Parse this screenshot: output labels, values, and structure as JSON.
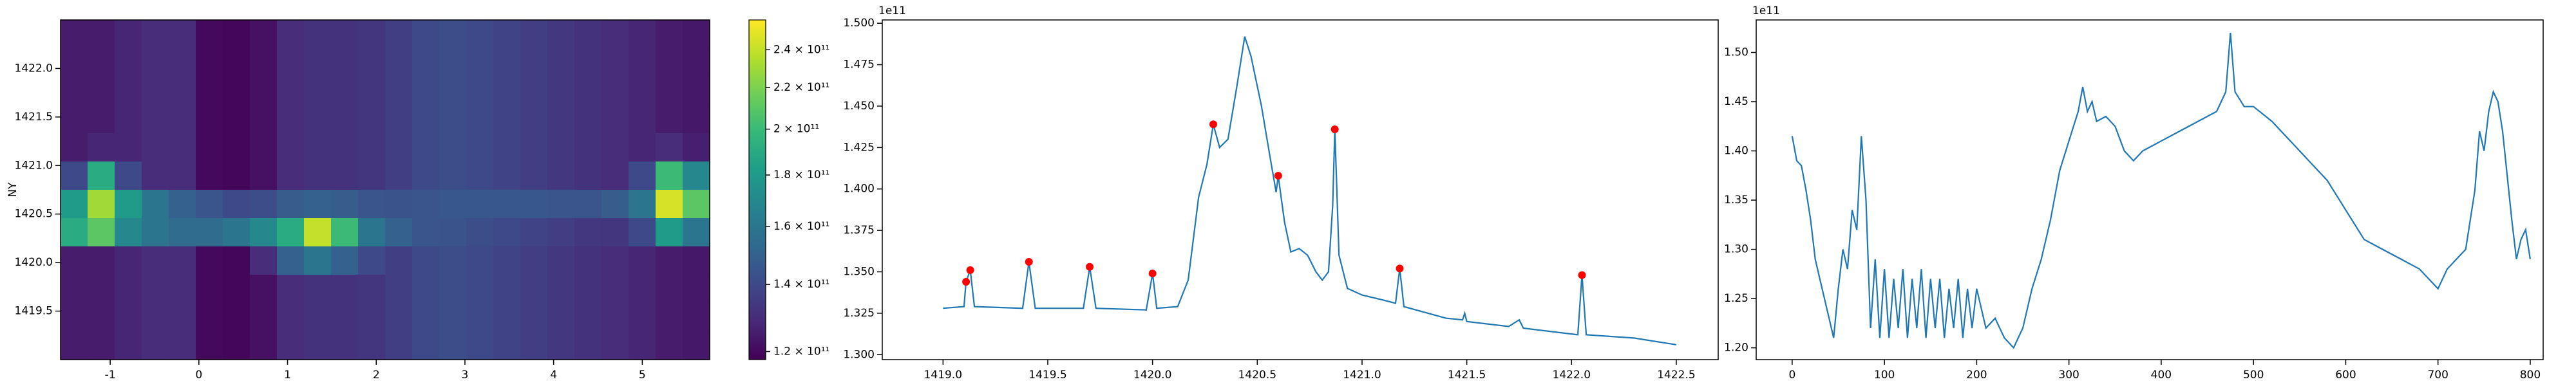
{
  "chart_data": [
    {
      "type": "heatmap",
      "ylabel": "NY",
      "colormap": "viridis",
      "xlim": [
        -1.56,
        5.76
      ],
      "xticks": [
        -1,
        0,
        1,
        2,
        3,
        4,
        5
      ],
      "ylim": [
        1419.0,
        1422.5
      ],
      "yticks": [
        {
          "value": 1419.5,
          "label": "1419.5"
        },
        {
          "value": 1420.0,
          "label": "1420.0"
        },
        {
          "value": 1420.5,
          "label": "1420.5"
        },
        {
          "value": 1421.0,
          "label": "1421.0"
        },
        {
          "value": 1421.5,
          "label": "1421.5"
        },
        {
          "value": 1422.0,
          "label": "1422.0"
        }
      ],
      "zscale": "log",
      "zlim": [
        117800000000.0,
        257000000000.0
      ],
      "zticks": [
        {
          "value": 120000000000.0,
          "label": "1.2 × 10¹¹"
        },
        {
          "value": 140000000000.0,
          "label": "1.4 × 10¹¹"
        },
        {
          "value": 160000000000.0,
          "label": "1.6 × 10¹¹"
        },
        {
          "value": 180000000000.0,
          "label": "1.8 × 10¹¹"
        },
        {
          "value": 200000000000.0,
          "label": "2 × 10¹¹"
        },
        {
          "value": 220000000000.0,
          "label": "2.2 × 10¹¹"
        },
        {
          "value": 240000000000.0,
          "label": "2.4 × 10¹¹"
        }
      ],
      "z": [
        [
          125000000000.0,
          125000000000.0,
          128000000000.0,
          130000000000.0,
          130000000000.0,
          120000000000.0,
          119000000000.0,
          122000000000.0,
          130000000000.0,
          132000000000.0,
          132000000000.0,
          133000000000.0,
          136000000000.0,
          140000000000.0,
          142000000000.0,
          140000000000.0,
          138000000000.0,
          136000000000.0,
          134000000000.0,
          132000000000.0,
          130000000000.0,
          128000000000.0,
          125000000000.0,
          124000000000.0
        ],
        [
          125000000000.0,
          125000000000.0,
          128000000000.0,
          130000000000.0,
          130000000000.0,
          120000000000.0,
          119000000000.0,
          122000000000.0,
          130000000000.0,
          132000000000.0,
          132000000000.0,
          133000000000.0,
          136000000000.0,
          140000000000.0,
          142000000000.0,
          140000000000.0,
          138000000000.0,
          136000000000.0,
          134000000000.0,
          132000000000.0,
          130000000000.0,
          128000000000.0,
          125000000000.0,
          124000000000.0
        ],
        [
          125000000000.0,
          125000000000.0,
          128000000000.0,
          130000000000.0,
          130000000000.0,
          120000000000.0,
          119000000000.0,
          122000000000.0,
          130000000000.0,
          132000000000.0,
          132000000000.0,
          133000000000.0,
          136000000000.0,
          140000000000.0,
          142000000000.0,
          140000000000.0,
          138000000000.0,
          136000000000.0,
          134000000000.0,
          132000000000.0,
          130000000000.0,
          128000000000.0,
          125000000000.0,
          124000000000.0
        ],
        [
          125000000000.0,
          125000000000.0,
          128000000000.0,
          130000000000.0,
          130000000000.0,
          120000000000.0,
          119000000000.0,
          122000000000.0,
          130000000000.0,
          132000000000.0,
          132000000000.0,
          133000000000.0,
          136000000000.0,
          140000000000.0,
          142000000000.0,
          140000000000.0,
          138000000000.0,
          136000000000.0,
          134000000000.0,
          132000000000.0,
          130000000000.0,
          128000000000.0,
          125000000000.0,
          124000000000.0
        ],
        [
          125000000000.0,
          128000000000.0,
          128000000000.0,
          130000000000.0,
          130000000000.0,
          120000000000.0,
          119000000000.0,
          122000000000.0,
          130000000000.0,
          132000000000.0,
          132000000000.0,
          133000000000.0,
          136000000000.0,
          140000000000.0,
          142000000000.0,
          140000000000.0,
          138000000000.0,
          136000000000.0,
          134000000000.0,
          132000000000.0,
          130000000000.0,
          128000000000.0,
          130000000000.0,
          126000000000.0
        ],
        [
          140000000000.0,
          190000000000.0,
          140000000000.0,
          130000000000.0,
          130000000000.0,
          120000000000.0,
          119000000000.0,
          122000000000.0,
          130000000000.0,
          132000000000.0,
          132000000000.0,
          133000000000.0,
          136000000000.0,
          140000000000.0,
          142000000000.0,
          140000000000.0,
          138000000000.0,
          136000000000.0,
          134000000000.0,
          132000000000.0,
          130000000000.0,
          140000000000.0,
          200000000000.0,
          170000000000.0
        ],
        [
          180000000000.0,
          230000000000.0,
          180000000000.0,
          160000000000.0,
          150000000000.0,
          145000000000.0,
          140000000000.0,
          142000000000.0,
          148000000000.0,
          150000000000.0,
          148000000000.0,
          145000000000.0,
          144000000000.0,
          145000000000.0,
          146000000000.0,
          146000000000.0,
          146000000000.0,
          146000000000.0,
          145000000000.0,
          145000000000.0,
          148000000000.0,
          160000000000.0,
          245000000000.0,
          210000000000.0
        ],
        [
          190000000000.0,
          210000000000.0,
          170000000000.0,
          160000000000.0,
          155000000000.0,
          155000000000.0,
          160000000000.0,
          170000000000.0,
          190000000000.0,
          240000000000.0,
          200000000000.0,
          160000000000.0,
          150000000000.0,
          145000000000.0,
          144000000000.0,
          142000000000.0,
          140000000000.0,
          138000000000.0,
          136000000000.0,
          134000000000.0,
          133000000000.0,
          140000000000.0,
          180000000000.0,
          160000000000.0
        ],
        [
          125000000000.0,
          125000000000.0,
          128000000000.0,
          130000000000.0,
          130000000000.0,
          120000000000.0,
          119000000000.0,
          130000000000.0,
          150000000000.0,
          160000000000.0,
          150000000000.0,
          140000000000.0,
          136000000000.0,
          140000000000.0,
          142000000000.0,
          140000000000.0,
          138000000000.0,
          136000000000.0,
          134000000000.0,
          132000000000.0,
          130000000000.0,
          128000000000.0,
          125000000000.0,
          124000000000.0
        ],
        [
          125000000000.0,
          125000000000.0,
          128000000000.0,
          130000000000.0,
          130000000000.0,
          120000000000.0,
          119000000000.0,
          122000000000.0,
          130000000000.0,
          132000000000.0,
          132000000000.0,
          133000000000.0,
          136000000000.0,
          140000000000.0,
          142000000000.0,
          140000000000.0,
          138000000000.0,
          136000000000.0,
          134000000000.0,
          132000000000.0,
          130000000000.0,
          128000000000.0,
          125000000000.0,
          124000000000.0
        ],
        [
          125000000000.0,
          125000000000.0,
          128000000000.0,
          130000000000.0,
          130000000000.0,
          120000000000.0,
          119000000000.0,
          122000000000.0,
          130000000000.0,
          132000000000.0,
          132000000000.0,
          133000000000.0,
          136000000000.0,
          140000000000.0,
          142000000000.0,
          140000000000.0,
          138000000000.0,
          136000000000.0,
          134000000000.0,
          132000000000.0,
          130000000000.0,
          128000000000.0,
          125000000000.0,
          124000000000.0
        ],
        [
          125000000000.0,
          125000000000.0,
          128000000000.0,
          130000000000.0,
          130000000000.0,
          120000000000.0,
          119000000000.0,
          122000000000.0,
          130000000000.0,
          132000000000.0,
          132000000000.0,
          133000000000.0,
          136000000000.0,
          140000000000.0,
          142000000000.0,
          140000000000.0,
          138000000000.0,
          136000000000.0,
          134000000000.0,
          132000000000.0,
          130000000000.0,
          128000000000.0,
          125000000000.0,
          124000000000.0
        ]
      ]
    },
    {
      "type": "line",
      "y_offset_label": "1e11",
      "xlim": [
        1418.71,
        1422.7
      ],
      "xticks": [
        {
          "value": 1419.0,
          "label": "1419.0"
        },
        {
          "value": 1419.5,
          "label": "1419.5"
        },
        {
          "value": 1420.0,
          "label": "1420.0"
        },
        {
          "value": 1420.5,
          "label": "1420.5"
        },
        {
          "value": 1421.0,
          "label": "1421.0"
        },
        {
          "value": 1421.5,
          "label": "1421.5"
        },
        {
          "value": 1422.0,
          "label": "1422.0"
        },
        {
          "value": 1422.5,
          "label": "1422.5"
        }
      ],
      "ylim": [
        129700000000.0,
        150200000000.0
      ],
      "yticks": [
        {
          "value": 130000000000.0,
          "label": "1.300"
        },
        {
          "value": 132500000000.0,
          "label": "1.325"
        },
        {
          "value": 135000000000.0,
          "label": "1.350"
        },
        {
          "value": 137500000000.0,
          "label": "1.375"
        },
        {
          "value": 140000000000.0,
          "label": "1.400"
        },
        {
          "value": 142500000000.0,
          "label": "1.425"
        },
        {
          "value": 145000000000.0,
          "label": "1.450"
        },
        {
          "value": 147500000000.0,
          "label": "1.475"
        },
        {
          "value": 150000000000.0,
          "label": "1.500"
        }
      ],
      "x": [
        1419.0,
        1419.1,
        1419.11,
        1419.13,
        1419.15,
        1419.38,
        1419.41,
        1419.44,
        1419.67,
        1419.7,
        1419.73,
        1419.97,
        1420.0,
        1420.02,
        1420.12,
        1420.17,
        1420.22,
        1420.26,
        1420.29,
        1420.32,
        1420.36,
        1420.4,
        1420.44,
        1420.47,
        1420.52,
        1420.56,
        1420.59,
        1420.6,
        1420.63,
        1420.66,
        1420.7,
        1420.74,
        1420.78,
        1420.81,
        1420.84,
        1420.86,
        1420.87,
        1420.89,
        1420.93,
        1421.0,
        1421.1,
        1421.16,
        1421.18,
        1421.2,
        1421.4,
        1421.48,
        1421.49,
        1421.5,
        1421.7,
        1421.75,
        1421.77,
        1422.03,
        1422.05,
        1422.07,
        1422.3,
        1422.5
      ],
      "series": [
        {
          "color": "#1f77b4",
          "values": [
            132800000000.0,
            132900000000.0,
            134400000000.0,
            135100000000.0,
            132900000000.0,
            132800000000.0,
            135600000000.0,
            132800000000.0,
            132800000000.0,
            135300000000.0,
            132800000000.0,
            132700000000.0,
            134900000000.0,
            132800000000.0,
            132900000000.0,
            134500000000.0,
            139500000000.0,
            141500000000.0,
            143900000000.0,
            142500000000.0,
            143000000000.0,
            146000000000.0,
            149200000000.0,
            148000000000.0,
            145000000000.0,
            142000000000.0,
            139800000000.0,
            140800000000.0,
            138000000000.0,
            136200000000.0,
            136400000000.0,
            136000000000.0,
            135000000000.0,
            134500000000.0,
            135000000000.0,
            139000000000.0,
            143600000000.0,
            136000000000.0,
            134000000000.0,
            133600000000.0,
            133300000000.0,
            133100000000.0,
            135200000000.0,
            132900000000.0,
            132200000000.0,
            132100000000.0,
            132500000000.0,
            132000000000.0,
            131700000000.0,
            132100000000.0,
            131600000000.0,
            131200000000.0,
            134800000000.0,
            131200000000.0,
            131000000000.0,
            130600000000.0
          ]
        }
      ],
      "markers": {
        "color": "#ff0000",
        "x": [
          1419.11,
          1419.13,
          1419.41,
          1419.7,
          1420.0,
          1420.29,
          1420.6,
          1420.87,
          1421.18,
          1422.05
        ],
        "values": [
          134400000000.0,
          135100000000.0,
          135600000000.0,
          135300000000.0,
          134900000000.0,
          143900000000.0,
          140800000000.0,
          143600000000.0,
          135200000000.0,
          134800000000.0
        ]
      }
    },
    {
      "type": "line",
      "y_offset_label": "1e11",
      "xlim": [
        -39,
        814
      ],
      "xticks": [
        0,
        100,
        200,
        300,
        400,
        500,
        600,
        700,
        800
      ],
      "ylim": [
        118800000000.0,
        153300000000.0
      ],
      "yticks": [
        {
          "value": 120000000000.0,
          "label": "1.20"
        },
        {
          "value": 125000000000.0,
          "label": "1.25"
        },
        {
          "value": 130000000000.0,
          "label": "1.30"
        },
        {
          "value": 135000000000.0,
          "label": "1.35"
        },
        {
          "value": 140000000000.0,
          "label": "1.40"
        },
        {
          "value": 145000000000.0,
          "label": "1.45"
        },
        {
          "value": 150000000000.0,
          "label": "1.50"
        }
      ],
      "x": [
        0,
        5,
        10,
        15,
        20,
        25,
        30,
        35,
        40,
        45,
        50,
        55,
        60,
        65,
        70,
        75,
        80,
        85,
        90,
        95,
        100,
        105,
        110,
        115,
        120,
        125,
        130,
        135,
        140,
        145,
        150,
        155,
        160,
        165,
        170,
        175,
        180,
        185,
        190,
        195,
        200,
        210,
        220,
        230,
        240,
        250,
        260,
        270,
        280,
        290,
        300,
        310,
        315,
        320,
        325,
        330,
        340,
        350,
        360,
        370,
        380,
        390,
        400,
        420,
        440,
        460,
        470,
        475,
        480,
        490,
        500,
        520,
        540,
        560,
        580,
        600,
        620,
        640,
        660,
        680,
        700,
        710,
        720,
        730,
        740,
        745,
        750,
        755,
        760,
        765,
        770,
        780,
        785,
        790,
        795,
        800
      ],
      "series": [
        {
          "color": "#1f77b4",
          "values": [
            141500000000.0,
            139000000000.0,
            138500000000.0,
            136000000000.0,
            133000000000.0,
            129000000000.0,
            127000000000.0,
            125000000000.0,
            123000000000.0,
            121000000000.0,
            126000000000.0,
            130000000000.0,
            128000000000.0,
            134000000000.0,
            132000000000.0,
            141500000000.0,
            135000000000.0,
            122000000000.0,
            129000000000.0,
            121000000000.0,
            128000000000.0,
            121000000000.0,
            127000000000.0,
            122000000000.0,
            128000000000.0,
            121000000000.0,
            127000000000.0,
            122000000000.0,
            128000000000.0,
            121000000000.0,
            127000000000.0,
            122000000000.0,
            127000000000.0,
            121000000000.0,
            126000000000.0,
            122000000000.0,
            127000000000.0,
            121000000000.0,
            126000000000.0,
            122000000000.0,
            126000000000.0,
            122000000000.0,
            123000000000.0,
            121000000000.0,
            120000000000.0,
            122000000000.0,
            126000000000.0,
            129000000000.0,
            133000000000.0,
            138000000000.0,
            141000000000.0,
            144000000000.0,
            146500000000.0,
            144000000000.0,
            145000000000.0,
            143000000000.0,
            143500000000.0,
            142500000000.0,
            140000000000.0,
            139000000000.0,
            140000000000.0,
            140500000000.0,
            141000000000.0,
            142000000000.0,
            143000000000.0,
            144000000000.0,
            146000000000.0,
            152000000000.0,
            146000000000.0,
            144500000000.0,
            144500000000.0,
            143000000000.0,
            141000000000.0,
            139000000000.0,
            137000000000.0,
            134000000000.0,
            131000000000.0,
            130000000000.0,
            129000000000.0,
            128000000000.0,
            126000000000.0,
            128000000000.0,
            129000000000.0,
            130000000000.0,
            136000000000.0,
            142000000000.0,
            140000000000.0,
            144000000000.0,
            146000000000.0,
            145000000000.0,
            142000000000.0,
            133000000000.0,
            129000000000.0,
            131000000000.0,
            132000000000.0,
            129000000000.0
          ]
        }
      ]
    }
  ]
}
